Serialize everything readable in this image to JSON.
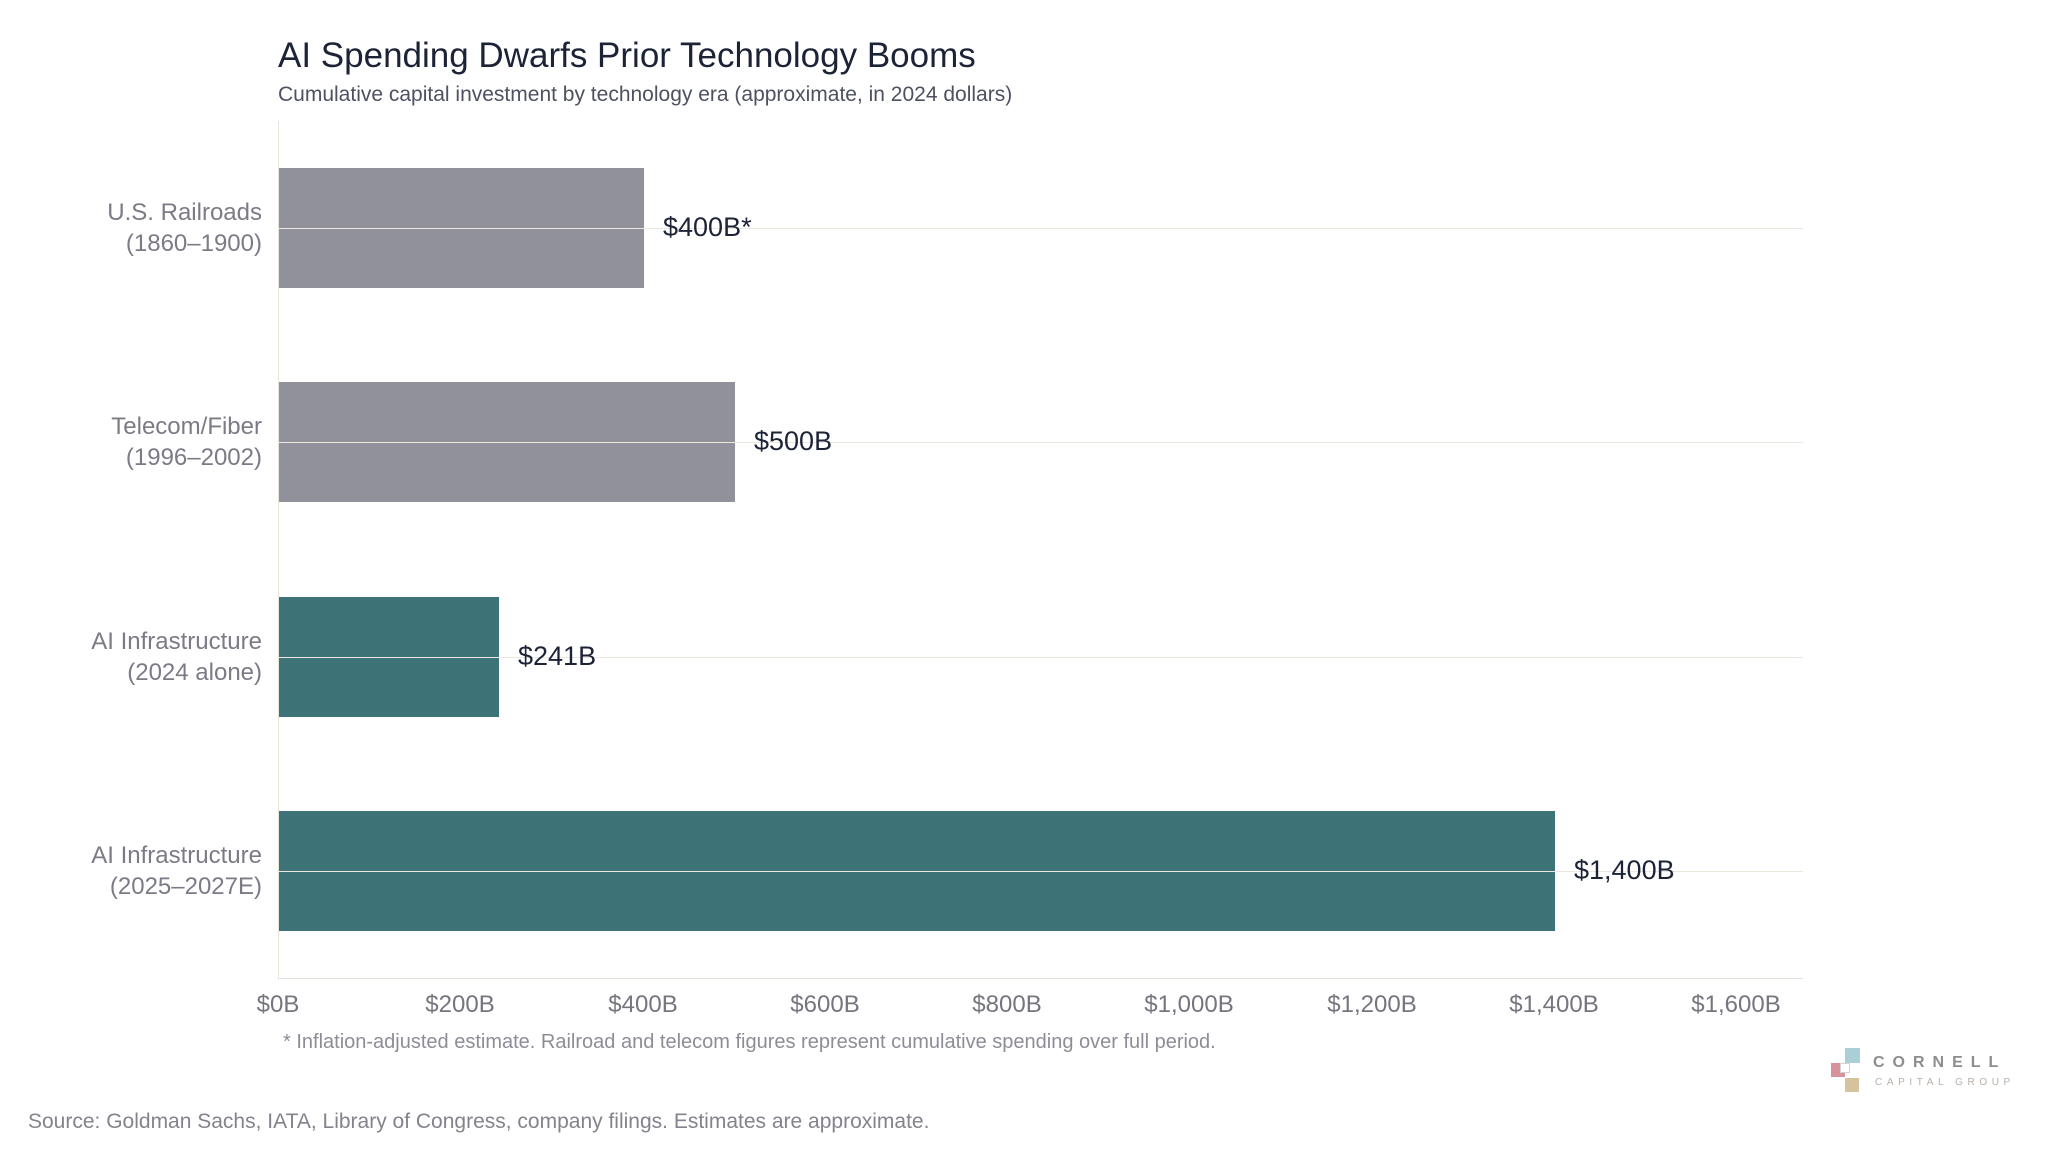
{
  "chart_data": {
    "type": "bar",
    "orientation": "horizontal",
    "title": "AI Spending Dwarfs Prior Technology Booms",
    "subtitle": "Cumulative capital investment by technology era (approximate, in 2024 dollars)",
    "footnote": "* Inflation-adjusted estimate. Railroad and telecom figures represent cumulative spending over full period.",
    "categories": [
      "U.S. Railroads (1860–1900)",
      "Telecom/Fiber (1996–2002)",
      "AI Infrastructure (2024 alone)",
      "AI Infrastructure (2025–2027E)"
    ],
    "values": [
      400,
      500,
      241,
      1400
    ],
    "rows": [
      {
        "category_line1": "U.S. Railroads",
        "category_line2": "(1860–1900)",
        "value": 400,
        "value_label": "$400B*",
        "color": "#90919b"
      },
      {
        "category_line1": "Telecom/Fiber",
        "category_line2": "(1996–2002)",
        "value": 500,
        "value_label": "$500B",
        "color": "#90919b"
      },
      {
        "category_line1": "AI Infrastructure",
        "category_line2": "(2024 alone)",
        "value": 241,
        "value_label": "$241B",
        "color": "#3d7377"
      },
      {
        "category_line1": "AI Infrastructure",
        "category_line2": "(2025–2027E)",
        "value": 1400,
        "value_label": "$1,400B",
        "color": "#3d7377"
      }
    ],
    "x_axis": {
      "min": 0,
      "max": 1600,
      "ticks": [
        {
          "value": 0,
          "label": "$0B"
        },
        {
          "value": 200,
          "label": "$200B"
        },
        {
          "value": 400,
          "label": "$400B"
        },
        {
          "value": 600,
          "label": "$600B"
        },
        {
          "value": 800,
          "label": "$800B"
        },
        {
          "value": 1000,
          "label": "$1,000B"
        },
        {
          "value": 1200,
          "label": "$1,200B"
        },
        {
          "value": 1400,
          "label": "$1,400B"
        },
        {
          "value": 1600,
          "label": "$1,600B"
        }
      ]
    },
    "grid": "one horizontal gridline per category row, drawn across plot",
    "legend": null
  },
  "page": {
    "source_note": "Source: Goldman Sachs, IATA, Library of Congress, company filings. Estimates are approximate."
  },
  "logo": {
    "name": "CORNELL",
    "tagline": "CAPITAL GROUP",
    "square_colors": {
      "blue": "#abcfd7",
      "rose": "#d7939b",
      "tan": "#d6c29c"
    }
  },
  "colors": {
    "bar_gray": "#90919b",
    "bar_teal": "#3d7377",
    "title_text": "#1c2336",
    "axis_line": "#e9e4dc",
    "gridline": "#ece8df"
  }
}
